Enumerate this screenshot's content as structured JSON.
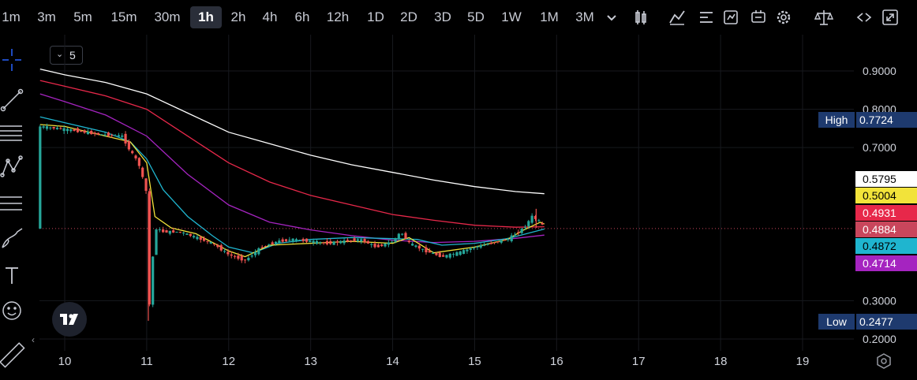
{
  "toolbar": {
    "timeframes": [
      "1m",
      "3m",
      "5m",
      "15m",
      "30m",
      "1h",
      "2h",
      "4h",
      "6h",
      "12h",
      "1D",
      "2D",
      "3D",
      "5D",
      "1W",
      "1M",
      "3M"
    ],
    "active_timeframe": "1h",
    "tools": [
      "chevron-down-icon",
      "candles-icon",
      "indicators-icon",
      "list-icon",
      "replay-icon",
      "alert-icon",
      "settings-icon",
      "compare-icon",
      "undo-redo-icon",
      "fullscreen-icon"
    ]
  },
  "sidebar": {
    "tools": [
      "crosshair-icon",
      "trend-line-icon",
      "horizontal-lines-icon",
      "pattern-icon",
      "fib-icon",
      "brush-icon",
      "text-icon",
      "emoji-icon",
      "ruler-icon"
    ]
  },
  "period_selector": {
    "label": "5"
  },
  "colors": {
    "up": "#26a69a",
    "down": "#ef5350",
    "ma_white": "#ffffff",
    "ma_red": "#e7284a",
    "ma_purple": "#a524c0",
    "ma_cyan": "#1fb5cf",
    "ma_yellow": "#f2e33a",
    "badge_high": "#1e3a6e",
    "badge_yellow": "#f2e33a",
    "badge_pink": "#e7284a",
    "badge_last": "#c9465c",
    "badge_cyan": "#1fb5cf",
    "badge_purple": "#a524c0"
  },
  "chart_data": {
    "type": "line",
    "x_ticks": [
      "10",
      "11",
      "12",
      "13",
      "14",
      "15",
      "16",
      "17",
      "18",
      "19"
    ],
    "y_ticks": [
      "0.9000",
      "0.8000",
      "0.7000",
      "0.3000",
      "0.2000"
    ],
    "ylim": [
      0.18,
      0.98
    ],
    "xlim": [
      9.7,
      19.95
    ],
    "price_labels": {
      "high": {
        "label": "High",
        "value": "0.7724"
      },
      "low": {
        "label": "Low",
        "value": "0.2477"
      },
      "ma_white": "0.5795",
      "ma_yellow": "0.5004",
      "ma_red": "0.4931",
      "last": "0.4884",
      "ma_cyan": "0.4872",
      "ma_purple": "0.4714"
    },
    "last_price": 0.4884,
    "series": [
      {
        "key": "ma_white",
        "x": [
          9.7,
          10,
          10.5,
          11,
          11.5,
          12,
          12.5,
          13,
          13.5,
          14,
          14.5,
          15,
          15.5,
          15.85
        ],
        "y": [
          0.905,
          0.89,
          0.87,
          0.84,
          0.79,
          0.74,
          0.71,
          0.68,
          0.655,
          0.635,
          0.615,
          0.598,
          0.585,
          0.5795
        ]
      },
      {
        "key": "ma_red",
        "x": [
          9.7,
          10,
          10.5,
          11,
          11.5,
          12,
          12.5,
          13,
          13.5,
          14,
          14.5,
          15,
          15.5,
          15.85
        ],
        "y": [
          0.875,
          0.86,
          0.835,
          0.8,
          0.73,
          0.66,
          0.61,
          0.575,
          0.55,
          0.525,
          0.51,
          0.497,
          0.492,
          0.4931
        ]
      },
      {
        "key": "ma_purple",
        "x": [
          9.7,
          10,
          10.5,
          11,
          11.5,
          12,
          12.5,
          13,
          13.5,
          14,
          14.5,
          15,
          15.5,
          15.85
        ],
        "y": [
          0.84,
          0.82,
          0.785,
          0.73,
          0.63,
          0.55,
          0.505,
          0.485,
          0.47,
          0.458,
          0.452,
          0.455,
          0.463,
          0.4714
        ]
      },
      {
        "key": "ma_cyan",
        "x": [
          9.7,
          10,
          10.5,
          10.8,
          11,
          11.2,
          11.5,
          11.8,
          12,
          12.3,
          12.6,
          13,
          13.5,
          14,
          14.3,
          14.6,
          15,
          15.4,
          15.85
        ],
        "y": [
          0.78,
          0.765,
          0.74,
          0.715,
          0.67,
          0.59,
          0.52,
          0.47,
          0.44,
          0.425,
          0.45,
          0.46,
          0.465,
          0.462,
          0.46,
          0.445,
          0.45,
          0.462,
          0.4872
        ]
      },
      {
        "key": "ma_yellow",
        "x": [
          9.7,
          10,
          10.5,
          10.8,
          11,
          11.1,
          11.3,
          11.6,
          12,
          12.2,
          12.5,
          13,
          13.5,
          14,
          14.2,
          14.5,
          15,
          15.4,
          15.6,
          15.8,
          15.85
        ],
        "y": [
          0.76,
          0.755,
          0.73,
          0.715,
          0.66,
          0.52,
          0.49,
          0.475,
          0.43,
          0.415,
          0.445,
          0.45,
          0.455,
          0.45,
          0.465,
          0.425,
          0.44,
          0.46,
          0.485,
          0.505,
          0.5004
        ]
      },
      {
        "key": "price",
        "x": [
          9.7,
          9.9,
          10.1,
          10.4,
          10.7,
          10.8,
          10.9,
          11.0,
          11.02,
          11.1,
          11.2,
          11.4,
          11.6,
          11.8,
          12.0,
          12.2,
          12.4,
          12.6,
          12.8,
          13.0,
          13.2,
          13.4,
          13.6,
          13.8,
          14.0,
          14.1,
          14.2,
          14.4,
          14.6,
          14.8,
          15.0,
          15.2,
          15.4,
          15.6,
          15.7,
          15.8,
          15.85
        ],
        "y": [
          0.755,
          0.75,
          0.745,
          0.735,
          0.73,
          0.69,
          0.66,
          0.58,
          0.25,
          0.49,
          0.48,
          0.48,
          0.465,
          0.45,
          0.42,
          0.405,
          0.44,
          0.455,
          0.46,
          0.455,
          0.45,
          0.455,
          0.46,
          0.44,
          0.455,
          0.48,
          0.45,
          0.43,
          0.415,
          0.425,
          0.44,
          0.45,
          0.46,
          0.49,
          0.52,
          0.505,
          0.4884
        ]
      }
    ]
  }
}
